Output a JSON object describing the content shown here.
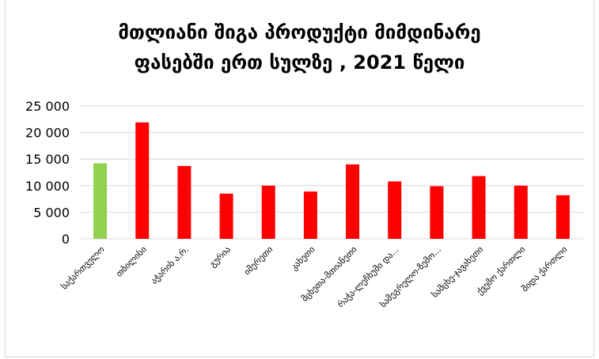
{
  "chart_data": {
    "type": "bar",
    "title_lines": [
      "მთლიანი შიგა პროდუქტი მიმდინარე",
      "ფასებში ერთ სულზე , 2021 წელი"
    ],
    "categories": [
      "საქართველო",
      "თბილისი",
      "აჭარის ა.რ.",
      "გურია",
      "იმერეთი",
      "კახეთი",
      "მცხეთა-მთიანეთი",
      "რაჭა-ლეჩხუმი და...",
      "სამეგრელო-ზემო...",
      "სამცხე-ჯავახეთი",
      "ქვემო ქართლი",
      "შიდა ქართლი"
    ],
    "values": [
      14200,
      21900,
      13700,
      8500,
      10000,
      8900,
      14000,
      10800,
      9900,
      11800,
      10000,
      8200
    ],
    "colors": [
      "#92d050",
      "#ff0000",
      "#ff0000",
      "#ff0000",
      "#ff0000",
      "#ff0000",
      "#ff0000",
      "#ff0000",
      "#ff0000",
      "#ff0000",
      "#ff0000",
      "#ff0000"
    ],
    "ylim": [
      0,
      25000
    ],
    "yticks": [
      "0",
      "5 000",
      "10 000",
      "15 000",
      "20 000",
      "25 000"
    ],
    "ytick_values": [
      0,
      5000,
      10000,
      15000,
      20000,
      25000
    ],
    "grid": true,
    "legend": "none"
  }
}
